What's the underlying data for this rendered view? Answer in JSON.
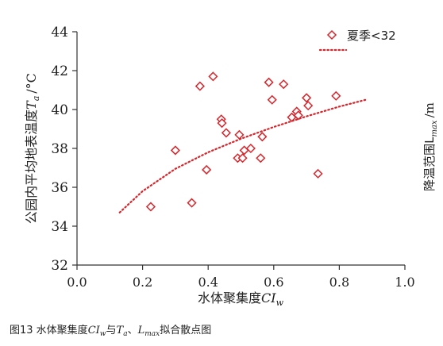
{
  "chart_data": {
    "type": "scatter",
    "x_axis": {
      "label_main": "水体聚集度",
      "label_sym": "CI",
      "label_sub": "w",
      "range": [
        0.0,
        1.0
      ],
      "ticks": [
        "0.0",
        "0.2",
        "0.4",
        "0.6",
        "0.8",
        "1.0"
      ]
    },
    "y_axis": {
      "label_main": "公园内平均地表温度",
      "label_sym": "T",
      "label_sub": "a",
      "label_unit": "/°C",
      "range": [
        32,
        44
      ],
      "ticks": [
        "32",
        "34",
        "36",
        "38",
        "40",
        "42",
        "44"
      ]
    },
    "right_axis_label": "降温范围L",
    "right_axis_label_sub": "max",
    "right_axis_label_unit": "/m",
    "legend": {
      "position": "top-right",
      "marker_label": "夏季<32",
      "line_label": ""
    },
    "series": [
      {
        "name": "夏季<32",
        "color": "#d8242a",
        "marker": "diamond",
        "points": [
          {
            "x": 0.225,
            "y": 35.0
          },
          {
            "x": 0.3,
            "y": 37.9
          },
          {
            "x": 0.35,
            "y": 35.2
          },
          {
            "x": 0.375,
            "y": 41.2
          },
          {
            "x": 0.395,
            "y": 36.9
          },
          {
            "x": 0.415,
            "y": 41.7
          },
          {
            "x": 0.44,
            "y": 39.5
          },
          {
            "x": 0.442,
            "y": 39.3
          },
          {
            "x": 0.455,
            "y": 38.8
          },
          {
            "x": 0.49,
            "y": 37.5
          },
          {
            "x": 0.495,
            "y": 38.7
          },
          {
            "x": 0.505,
            "y": 37.5
          },
          {
            "x": 0.51,
            "y": 37.9
          },
          {
            "x": 0.53,
            "y": 38.0
          },
          {
            "x": 0.56,
            "y": 37.5
          },
          {
            "x": 0.565,
            "y": 38.6
          },
          {
            "x": 0.585,
            "y": 41.4
          },
          {
            "x": 0.595,
            "y": 40.5
          },
          {
            "x": 0.63,
            "y": 41.3
          },
          {
            "x": 0.655,
            "y": 39.6
          },
          {
            "x": 0.67,
            "y": 39.9
          },
          {
            "x": 0.675,
            "y": 39.7
          },
          {
            "x": 0.7,
            "y": 40.6
          },
          {
            "x": 0.705,
            "y": 40.2
          },
          {
            "x": 0.735,
            "y": 36.7
          },
          {
            "x": 0.79,
            "y": 40.7
          }
        ]
      }
    ],
    "trendline": {
      "style": "dotted",
      "color": "#d8242a",
      "shape": "logarithmic",
      "points": [
        {
          "x": 0.13,
          "y": 34.7
        },
        {
          "x": 0.2,
          "y": 35.8
        },
        {
          "x": 0.3,
          "y": 36.95
        },
        {
          "x": 0.4,
          "y": 37.8
        },
        {
          "x": 0.5,
          "y": 38.5
        },
        {
          "x": 0.6,
          "y": 39.1
        },
        {
          "x": 0.7,
          "y": 39.65
        },
        {
          "x": 0.8,
          "y": 40.15
        },
        {
          "x": 0.88,
          "y": 40.5
        }
      ]
    },
    "grid": false
  },
  "caption": {
    "prefix": "图13  水体聚集度",
    "sym1": "CI",
    "sub1": "w",
    "mid1": "与",
    "sym2": "T",
    "sub2": "a",
    "mid2": "、",
    "sym3": "L",
    "sub3": "max",
    "suffix": "拟合散点图"
  }
}
